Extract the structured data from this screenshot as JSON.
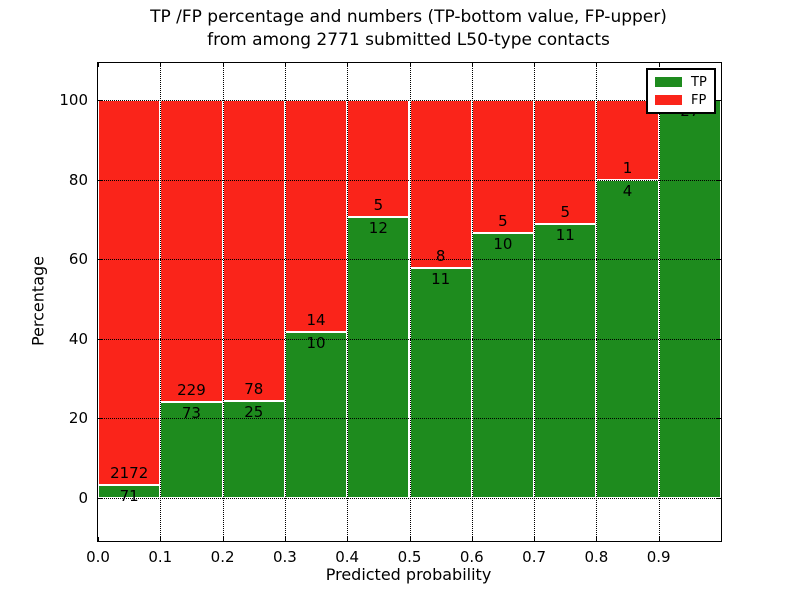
{
  "figure": {
    "title_line1": "TP /FP percentage and numbers (TP-bottom value, FP-upper)",
    "title_line2": "from among 2771 submitted L50-type contacts"
  },
  "chart_data": {
    "type": "bar",
    "stacked": true,
    "normalized": "each bin scaled to TP+FP = 100%",
    "title": "TP /FP percentage and numbers (TP-bottom value, FP-upper)\nfrom among 2771 submitted L50-type contacts",
    "xlabel": "Predicted probability",
    "ylabel": "Percentage",
    "xlim": [
      0.0,
      1.0
    ],
    "ylim": [
      -10.8,
      109.3
    ],
    "grid": true,
    "grid_style": "dotted-black",
    "bar_edge_color": "#ffffff",
    "bin_edges": [
      0.0,
      0.1,
      0.2,
      0.3,
      0.4,
      0.5,
      0.6,
      0.7,
      0.8,
      0.9,
      1.0
    ],
    "series": [
      {
        "name": "TP",
        "color": "#1e8b1e",
        "counts": [
          71,
          73,
          25,
          10,
          12,
          11,
          10,
          11,
          4,
          27
        ]
      },
      {
        "name": "FP",
        "color": "#fa241a",
        "counts": [
          2172,
          229,
          78,
          14,
          5,
          8,
          5,
          5,
          1,
          0
        ]
      }
    ],
    "tp_percent": [
      3.17,
      24.17,
      24.27,
      41.67,
      70.59,
      57.89,
      66.67,
      68.75,
      80.0,
      100.0
    ],
    "total_contacts": 2771,
    "xtick_labels": [
      "0.0",
      "0.1",
      "0.2",
      "0.3",
      "0.4",
      "0.5",
      "0.6",
      "0.7",
      "0.8",
      "0.9"
    ],
    "ytick_values": [
      0,
      20,
      40,
      60,
      80,
      100
    ],
    "ytick_labels": [
      "0",
      "20",
      "40",
      "60",
      "80",
      "100"
    ],
    "legend": {
      "position": "upper right",
      "items": [
        {
          "label": "TP",
          "color": "#1e8b1e"
        },
        {
          "label": "FP",
          "color": "#fa241a"
        }
      ]
    }
  }
}
